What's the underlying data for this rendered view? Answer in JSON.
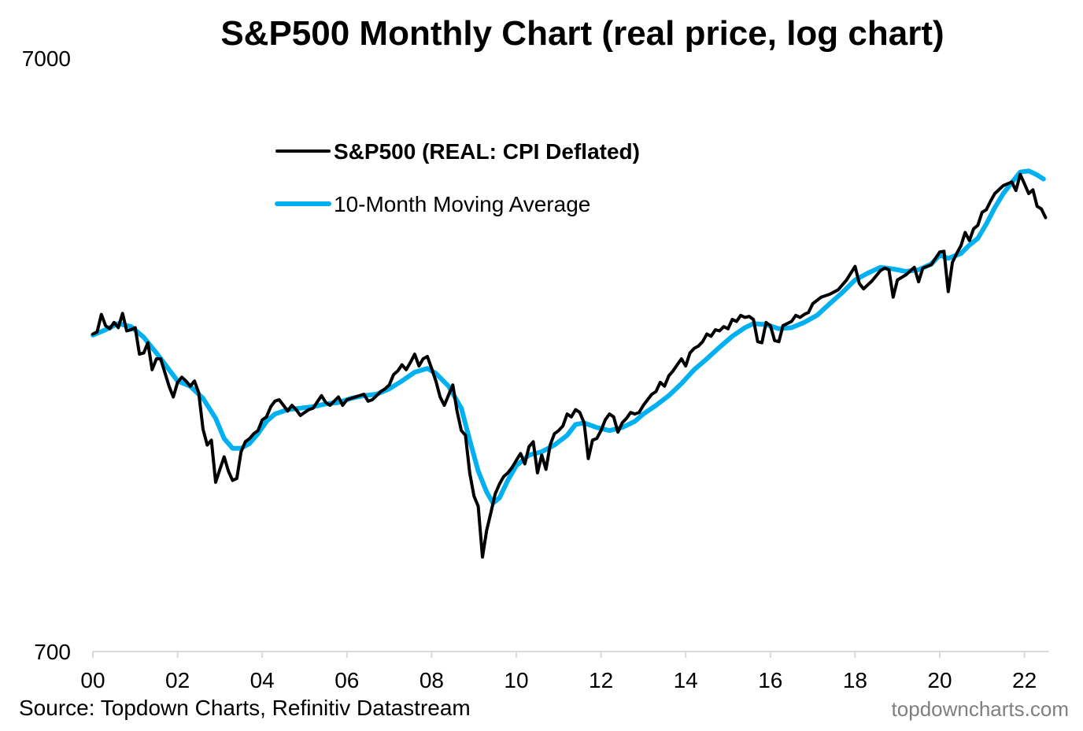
{
  "chart_data": {
    "type": "line",
    "title": "S&P500 Monthly Chart (real price, log chart)",
    "xlabel": "",
    "ylabel": "",
    "yscale": "log",
    "ylim": [
      700,
      7000
    ],
    "yticks": [
      "7000",
      "700"
    ],
    "ytick_values": [
      7000,
      700
    ],
    "xlim": [
      2000,
      2022.5
    ],
    "xticks": [
      "00",
      "02",
      "04",
      "06",
      "08",
      "10",
      "12",
      "14",
      "16",
      "18",
      "20",
      "22"
    ],
    "xtick_values": [
      2000,
      2002,
      2004,
      2006,
      2008,
      2010,
      2012,
      2014,
      2016,
      2018,
      2020,
      2022
    ],
    "grid": false,
    "legend_position": "top-left-inside",
    "series": [
      {
        "name": "S&P500 (REAL: CPI Deflated)",
        "color": "#000000",
        "points": [
          [
            2000.0,
            2400
          ],
          [
            2000.1,
            2420
          ],
          [
            2000.2,
            2590
          ],
          [
            2000.3,
            2480
          ],
          [
            2000.4,
            2450
          ],
          [
            2000.5,
            2510
          ],
          [
            2000.6,
            2460
          ],
          [
            2000.7,
            2600
          ],
          [
            2000.8,
            2430
          ],
          [
            2000.9,
            2440
          ],
          [
            2001.0,
            2460
          ],
          [
            2001.1,
            2220
          ],
          [
            2001.2,
            2230
          ],
          [
            2001.3,
            2320
          ],
          [
            2001.4,
            2090
          ],
          [
            2001.5,
            2180
          ],
          [
            2001.6,
            2180
          ],
          [
            2001.8,
            1960
          ],
          [
            2001.9,
            1880
          ],
          [
            2002.0,
            1990
          ],
          [
            2002.1,
            2030
          ],
          [
            2002.2,
            2000
          ],
          [
            2002.3,
            1960
          ],
          [
            2002.4,
            2000
          ],
          [
            2002.5,
            1910
          ],
          [
            2002.6,
            1660
          ],
          [
            2002.7,
            1560
          ],
          [
            2002.8,
            1590
          ],
          [
            2002.9,
            1350
          ],
          [
            2003.0,
            1420
          ],
          [
            2003.1,
            1490
          ],
          [
            2003.2,
            1410
          ],
          [
            2003.3,
            1360
          ],
          [
            2003.4,
            1370
          ],
          [
            2003.5,
            1520
          ],
          [
            2003.6,
            1580
          ],
          [
            2003.7,
            1600
          ],
          [
            2003.8,
            1630
          ],
          [
            2003.9,
            1650
          ],
          [
            2004.0,
            1720
          ],
          [
            2004.1,
            1740
          ],
          [
            2004.2,
            1810
          ],
          [
            2004.3,
            1850
          ],
          [
            2004.4,
            1860
          ],
          [
            2004.5,
            1820
          ],
          [
            2004.6,
            1780
          ],
          [
            2004.7,
            1820
          ],
          [
            2004.8,
            1790
          ],
          [
            2004.9,
            1750
          ],
          [
            2005.0,
            1770
          ],
          [
            2005.1,
            1790
          ],
          [
            2005.2,
            1800
          ],
          [
            2005.4,
            1890
          ],
          [
            2005.5,
            1840
          ],
          [
            2005.6,
            1820
          ],
          [
            2005.8,
            1880
          ],
          [
            2005.9,
            1820
          ],
          [
            2006.0,
            1860
          ],
          [
            2006.2,
            1880
          ],
          [
            2006.4,
            1900
          ],
          [
            2006.5,
            1850
          ],
          [
            2006.6,
            1860
          ],
          [
            2006.8,
            1920
          ],
          [
            2006.9,
            1940
          ],
          [
            2007.0,
            1970
          ],
          [
            2007.1,
            2050
          ],
          [
            2007.2,
            2080
          ],
          [
            2007.3,
            2130
          ],
          [
            2007.4,
            2090
          ],
          [
            2007.5,
            2150
          ],
          [
            2007.6,
            2220
          ],
          [
            2007.7,
            2120
          ],
          [
            2007.8,
            2180
          ],
          [
            2007.9,
            2200
          ],
          [
            2008.0,
            2100
          ],
          [
            2008.1,
            2000
          ],
          [
            2008.2,
            1880
          ],
          [
            2008.3,
            1820
          ],
          [
            2008.5,
            1970
          ],
          [
            2008.6,
            1780
          ],
          [
            2008.7,
            1650
          ],
          [
            2008.8,
            1620
          ],
          [
            2008.9,
            1400
          ],
          [
            2009.0,
            1280
          ],
          [
            2009.1,
            1230
          ],
          [
            2009.2,
            1010
          ],
          [
            2009.3,
            1120
          ],
          [
            2009.4,
            1200
          ],
          [
            2009.5,
            1290
          ],
          [
            2009.6,
            1340
          ],
          [
            2009.7,
            1380
          ],
          [
            2009.8,
            1400
          ],
          [
            2009.9,
            1430
          ],
          [
            2010.0,
            1470
          ],
          [
            2010.1,
            1510
          ],
          [
            2010.2,
            1450
          ],
          [
            2010.3,
            1550
          ],
          [
            2010.4,
            1580
          ],
          [
            2010.5,
            1400
          ],
          [
            2010.6,
            1500
          ],
          [
            2010.7,
            1420
          ],
          [
            2010.8,
            1560
          ],
          [
            2010.9,
            1630
          ],
          [
            2011.0,
            1650
          ],
          [
            2011.1,
            1680
          ],
          [
            2011.2,
            1760
          ],
          [
            2011.3,
            1740
          ],
          [
            2011.4,
            1790
          ],
          [
            2011.5,
            1770
          ],
          [
            2011.6,
            1700
          ],
          [
            2011.7,
            1480
          ],
          [
            2011.8,
            1590
          ],
          [
            2011.9,
            1600
          ],
          [
            2012.0,
            1650
          ],
          [
            2012.1,
            1720
          ],
          [
            2012.2,
            1760
          ],
          [
            2012.3,
            1740
          ],
          [
            2012.4,
            1640
          ],
          [
            2012.5,
            1700
          ],
          [
            2012.6,
            1730
          ],
          [
            2012.7,
            1770
          ],
          [
            2012.8,
            1760
          ],
          [
            2012.9,
            1770
          ],
          [
            2013.0,
            1820
          ],
          [
            2013.1,
            1860
          ],
          [
            2013.2,
            1900
          ],
          [
            2013.3,
            1920
          ],
          [
            2013.4,
            1990
          ],
          [
            2013.5,
            1960
          ],
          [
            2013.6,
            2040
          ],
          [
            2013.7,
            2080
          ],
          [
            2013.8,
            2130
          ],
          [
            2013.9,
            2180
          ],
          [
            2014.0,
            2120
          ],
          [
            2014.1,
            2230
          ],
          [
            2014.2,
            2270
          ],
          [
            2014.3,
            2290
          ],
          [
            2014.4,
            2330
          ],
          [
            2014.5,
            2400
          ],
          [
            2014.6,
            2380
          ],
          [
            2014.7,
            2440
          ],
          [
            2014.8,
            2430
          ],
          [
            2014.9,
            2470
          ],
          [
            2015.0,
            2450
          ],
          [
            2015.1,
            2540
          ],
          [
            2015.2,
            2520
          ],
          [
            2015.3,
            2580
          ],
          [
            2015.4,
            2560
          ],
          [
            2015.5,
            2570
          ],
          [
            2015.6,
            2540
          ],
          [
            2015.7,
            2330
          ],
          [
            2015.8,
            2320
          ],
          [
            2015.9,
            2510
          ],
          [
            2016.0,
            2480
          ],
          [
            2016.1,
            2340
          ],
          [
            2016.2,
            2330
          ],
          [
            2016.3,
            2480
          ],
          [
            2016.4,
            2500
          ],
          [
            2016.5,
            2520
          ],
          [
            2016.6,
            2580
          ],
          [
            2016.7,
            2560
          ],
          [
            2016.8,
            2590
          ],
          [
            2016.9,
            2610
          ],
          [
            2017.0,
            2700
          ],
          [
            2017.2,
            2770
          ],
          [
            2017.4,
            2800
          ],
          [
            2017.6,
            2850
          ],
          [
            2017.8,
            2960
          ],
          [
            2018.0,
            3120
          ],
          [
            2018.1,
            2920
          ],
          [
            2018.2,
            2860
          ],
          [
            2018.4,
            2950
          ],
          [
            2018.6,
            3070
          ],
          [
            2018.7,
            3100
          ],
          [
            2018.8,
            3080
          ],
          [
            2018.9,
            2770
          ],
          [
            2019.0,
            2960
          ],
          [
            2019.2,
            3020
          ],
          [
            2019.4,
            3110
          ],
          [
            2019.5,
            2940
          ],
          [
            2019.6,
            3100
          ],
          [
            2019.8,
            3140
          ],
          [
            2020.0,
            3300
          ],
          [
            2020.1,
            3310
          ],
          [
            2020.2,
            2830
          ],
          [
            2020.3,
            3170
          ],
          [
            2020.4,
            3280
          ],
          [
            2020.5,
            3380
          ],
          [
            2020.6,
            3560
          ],
          [
            2020.7,
            3450
          ],
          [
            2020.8,
            3610
          ],
          [
            2020.9,
            3660
          ],
          [
            2021.0,
            3850
          ],
          [
            2021.1,
            3890
          ],
          [
            2021.2,
            4020
          ],
          [
            2021.3,
            4140
          ],
          [
            2021.5,
            4270
          ],
          [
            2021.6,
            4300
          ],
          [
            2021.7,
            4330
          ],
          [
            2021.8,
            4190
          ],
          [
            2021.9,
            4460
          ],
          [
            2022.0,
            4300
          ],
          [
            2022.1,
            4140
          ],
          [
            2022.2,
            4200
          ],
          [
            2022.3,
            3940
          ],
          [
            2022.4,
            3900
          ],
          [
            2022.5,
            3770
          ]
        ]
      },
      {
        "name": "10-Month Moving Average",
        "color": "#00b0f0",
        "points": [
          [
            2000.0,
            2390
          ],
          [
            2000.3,
            2440
          ],
          [
            2000.6,
            2500
          ],
          [
            2000.9,
            2470
          ],
          [
            2001.2,
            2370
          ],
          [
            2001.5,
            2230
          ],
          [
            2001.8,
            2090
          ],
          [
            2002.0,
            2000
          ],
          [
            2002.3,
            1960
          ],
          [
            2002.6,
            1870
          ],
          [
            2002.9,
            1730
          ],
          [
            2003.1,
            1600
          ],
          [
            2003.3,
            1540
          ],
          [
            2003.5,
            1540
          ],
          [
            2003.7,
            1570
          ],
          [
            2003.9,
            1630
          ],
          [
            2004.1,
            1710
          ],
          [
            2004.3,
            1760
          ],
          [
            2004.6,
            1790
          ],
          [
            2004.9,
            1800
          ],
          [
            2005.2,
            1810
          ],
          [
            2005.5,
            1830
          ],
          [
            2005.8,
            1840
          ],
          [
            2006.1,
            1870
          ],
          [
            2006.4,
            1890
          ],
          [
            2006.7,
            1900
          ],
          [
            2007.0,
            1940
          ],
          [
            2007.3,
            2000
          ],
          [
            2007.6,
            2070
          ],
          [
            2007.9,
            2100
          ],
          [
            2008.1,
            2060
          ],
          [
            2008.4,
            1960
          ],
          [
            2008.7,
            1800
          ],
          [
            2008.9,
            1590
          ],
          [
            2009.1,
            1410
          ],
          [
            2009.3,
            1300
          ],
          [
            2009.45,
            1245
          ],
          [
            2009.6,
            1270
          ],
          [
            2009.8,
            1360
          ],
          [
            2010.0,
            1440
          ],
          [
            2010.3,
            1500
          ],
          [
            2010.6,
            1520
          ],
          [
            2010.9,
            1560
          ],
          [
            2011.2,
            1620
          ],
          [
            2011.4,
            1690
          ],
          [
            2011.6,
            1700
          ],
          [
            2011.9,
            1670
          ],
          [
            2012.2,
            1650
          ],
          [
            2012.5,
            1670
          ],
          [
            2012.8,
            1710
          ],
          [
            2013.0,
            1760
          ],
          [
            2013.3,
            1820
          ],
          [
            2013.6,
            1890
          ],
          [
            2013.9,
            1980
          ],
          [
            2014.2,
            2090
          ],
          [
            2014.5,
            2180
          ],
          [
            2014.8,
            2280
          ],
          [
            2015.1,
            2380
          ],
          [
            2015.4,
            2460
          ],
          [
            2015.6,
            2500
          ],
          [
            2015.9,
            2490
          ],
          [
            2016.2,
            2450
          ],
          [
            2016.5,
            2460
          ],
          [
            2016.8,
            2510
          ],
          [
            2017.1,
            2580
          ],
          [
            2017.4,
            2700
          ],
          [
            2017.7,
            2820
          ],
          [
            2018.0,
            2960
          ],
          [
            2018.3,
            3040
          ],
          [
            2018.6,
            3110
          ],
          [
            2018.9,
            3090
          ],
          [
            2019.2,
            3060
          ],
          [
            2019.5,
            3080
          ],
          [
            2019.8,
            3150
          ],
          [
            2020.0,
            3260
          ],
          [
            2020.2,
            3220
          ],
          [
            2020.5,
            3280
          ],
          [
            2020.7,
            3390
          ],
          [
            2020.9,
            3480
          ],
          [
            2021.1,
            3680
          ],
          [
            2021.3,
            3920
          ],
          [
            2021.5,
            4140
          ],
          [
            2021.7,
            4320
          ],
          [
            2021.9,
            4500
          ],
          [
            2022.1,
            4520
          ],
          [
            2022.3,
            4450
          ],
          [
            2022.45,
            4380
          ]
        ]
      }
    ]
  },
  "footer": {
    "source": "Source: Topdown Charts, Refinitiv Datastream",
    "site": "topdowncharts.com"
  }
}
